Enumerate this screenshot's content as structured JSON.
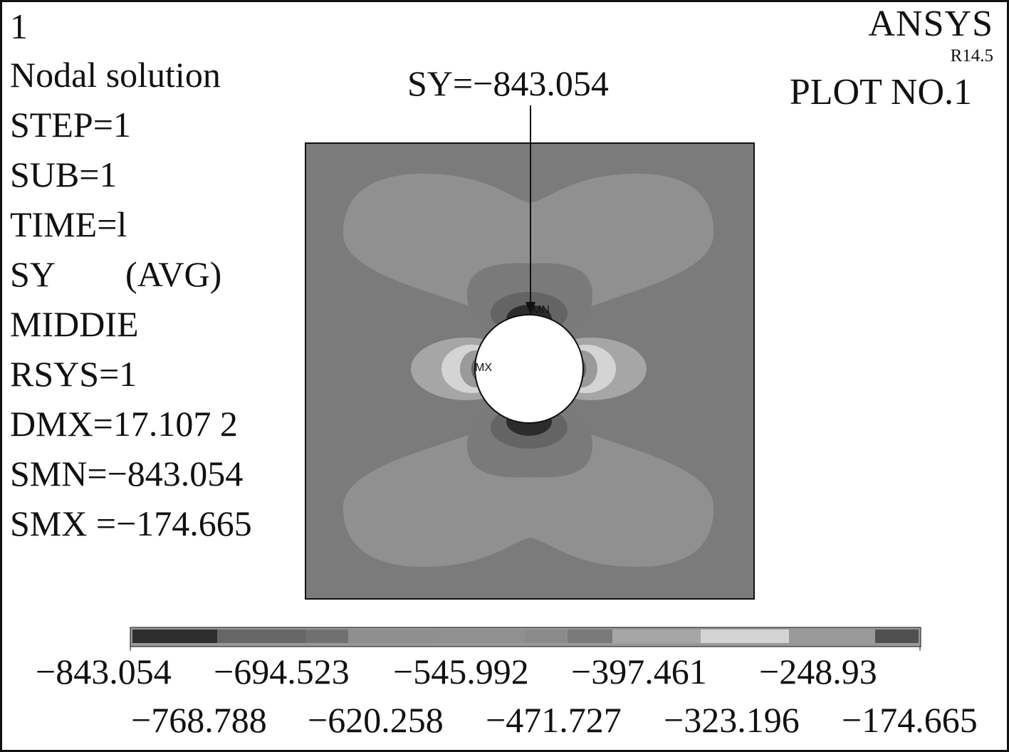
{
  "header": {
    "window_number": "1",
    "info_lines": [
      "Nodal solution",
      "STEP=1",
      "SUB=1",
      "TIME=l",
      "SY        (AVG)",
      "MIDDIE",
      "RSYS=1",
      "DMX=17.107 2",
      "SMN=−843.054",
      "SMX =−174.665"
    ],
    "brand": "ANSYS",
    "version": "R14.5",
    "plot_number": "PLOT NO.1"
  },
  "callout": {
    "text": "SY=−843.054"
  },
  "plot": {
    "min_marker": "MN",
    "max_marker": "MX",
    "colors": {
      "band_1": "#2c2c2c",
      "band_2": "#646464",
      "band_3": "#6e6e6e",
      "band_4": "#8f8f8f",
      "band_5": "#909090",
      "band_6": "#8b8b8b",
      "band_7": "#7a7a7a",
      "band_8": "#a6a6a6",
      "band_9": "#d4d4d4",
      "band_10": "#9a9a9a",
      "background_band": "#7b7b7b",
      "hole": "#ffffff"
    }
  },
  "legend": {
    "values_row_top": [
      "−843.054",
      "−694.523",
      "−545.992",
      "−397.461",
      "−248.93"
    ],
    "values_row_bottom": [
      "−768.788",
      "−620.258",
      "−471.727",
      "−323.196",
      "−174.665"
    ],
    "band_colors": [
      "#2e2e2e",
      "#666666",
      "#707070",
      "#8f8f8f",
      "#909090",
      "#8b8b8b",
      "#7a7a7a",
      "#a6a6a6",
      "#d4d4d4",
      "#9a9a9a",
      "#505050"
    ]
  }
}
